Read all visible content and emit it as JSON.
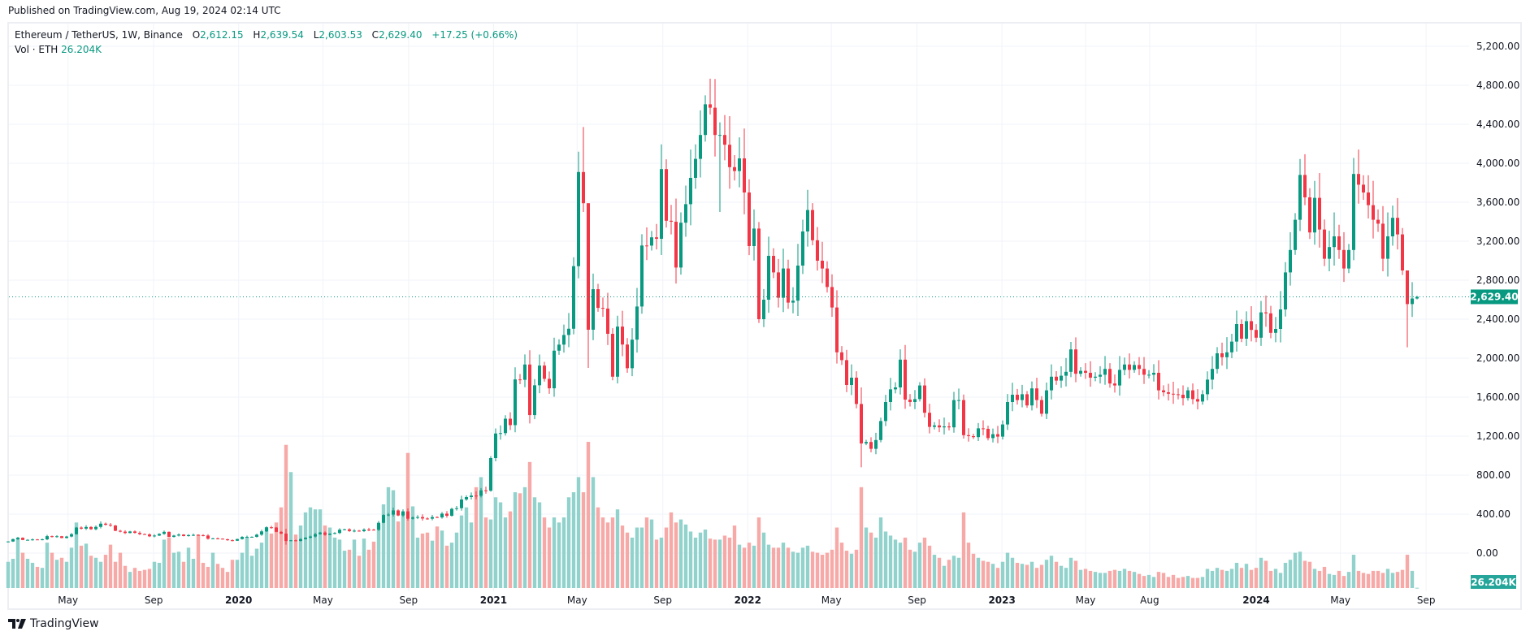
{
  "header": {
    "published": "Published on TradingView.com, Aug 19, 2024 02:14 UTC"
  },
  "legend": {
    "symbol": "Ethereum / TetherUS, 1W, Binance",
    "open_label": "O",
    "open": "2,612.15",
    "high_label": "H",
    "high": "2,639.54",
    "low_label": "L",
    "low": "2,603.53",
    "close_label": "C",
    "close": "2,629.40",
    "change": "+17.25 (+0.66%)",
    "vol_label": "Vol · ETH",
    "vol_value": "26.204K"
  },
  "footer": {
    "brand": "TradingView"
  },
  "colors": {
    "up": "#089981",
    "down": "#f23645",
    "vol_up": "#92d2cc",
    "vol_down": "#f7a9a7",
    "grid": "#f0f3fa",
    "badge": "#089981",
    "vol_badge": "#26a69a"
  },
  "chart_data": {
    "type": "candlestick",
    "interval": "1W",
    "start_week": "2019-02-04",
    "first_open": 115,
    "ylim": [
      0,
      5400
    ],
    "y_ticks": [
      "0.00",
      "400.00",
      "800.00",
      "1,200.00",
      "1,600.00",
      "2,000.00",
      "2,400.00",
      "2,800.00",
      "3,200.00",
      "3,600.00",
      "4,000.00",
      "4,400.00",
      "4,800.00",
      "5,200.00"
    ],
    "y_tick_values": [
      0,
      400,
      800,
      1200,
      1600,
      2000,
      2400,
      2800,
      3200,
      3600,
      4000,
      4400,
      4800,
      5200
    ],
    "x_ticks": [
      {
        "label": "May",
        "date": "2019-05-01",
        "bold": false
      },
      {
        "label": "Sep",
        "date": "2019-09-01",
        "bold": false
      },
      {
        "label": "2020",
        "date": "2020-01-01",
        "bold": true
      },
      {
        "label": "May",
        "date": "2020-05-01",
        "bold": false
      },
      {
        "label": "Sep",
        "date": "2020-09-01",
        "bold": false
      },
      {
        "label": "2021",
        "date": "2021-01-01",
        "bold": true
      },
      {
        "label": "May",
        "date": "2021-05-01",
        "bold": false
      },
      {
        "label": "Sep",
        "date": "2021-09-01",
        "bold": false
      },
      {
        "label": "2022",
        "date": "2022-01-01",
        "bold": true
      },
      {
        "label": "May",
        "date": "2022-05-01",
        "bold": false
      },
      {
        "label": "Sep",
        "date": "2022-09-01",
        "bold": false
      },
      {
        "label": "2023",
        "date": "2023-01-01",
        "bold": true
      },
      {
        "label": "May",
        "date": "2023-05-01",
        "bold": false
      },
      {
        "label": "Aug",
        "date": "2023-08-01",
        "bold": false
      },
      {
        "label": "2024",
        "date": "2024-01-01",
        "bold": true
      },
      {
        "label": "May",
        "date": "2024-05-01",
        "bold": false
      },
      {
        "label": "Sep",
        "date": "2024-09-01",
        "bold": false
      }
    ],
    "last_price": 2629.4,
    "last_price_label": "2,629.40",
    "last_volume_label": "26.204K",
    "close": [
      119,
      143,
      157,
      135,
      136,
      140,
      137,
      141,
      174,
      165,
      173,
      155,
      170,
      194,
      262,
      251,
      268,
      245,
      269,
      302,
      291,
      283,
      229,
      220,
      206,
      222,
      208,
      195,
      192,
      172,
      180,
      197,
      218,
      166,
      180,
      190,
      175,
      185,
      187,
      184,
      180,
      147,
      151,
      148,
      142,
      132,
      127,
      144,
      166,
      167,
      167,
      189,
      223,
      265,
      262,
      218,
      200,
      124,
      131,
      125,
      143,
      158,
      170,
      194,
      211,
      187,
      199,
      206,
      240,
      244,
      226,
      230,
      225,
      241,
      240,
      239,
      311,
      391,
      395,
      438,
      386,
      428,
      353,
      365,
      370,
      355,
      353,
      370,
      366,
      405,
      383,
      454,
      461,
      550,
      575,
      590,
      588,
      644,
      640,
      975,
      1227,
      1231,
      1379,
      1313,
      1782,
      1778,
      1935,
      1416,
      1722,
      1924,
      1788,
      1691,
      2077,
      2139,
      2238,
      2302,
      2944,
      3910,
      3590,
      2292,
      2708,
      2516,
      2509,
      2250,
      1810,
      2324,
      2140,
      1897,
      2190,
      2530,
      3156,
      3155,
      3240,
      3225,
      3940,
      3410,
      3400,
      2930,
      3390,
      3580,
      3850,
      4045,
      4290,
      4605,
      4570,
      4290,
      4290,
      4190,
      3960,
      3920,
      4050,
      3700,
      3150,
      3330,
      2400,
      2600,
      3050,
      2880,
      2620,
      2920,
      2570,
      2590,
      2950,
      3300,
      3520,
      3210,
      3000,
      2920,
      2730,
      2520,
      2060,
      1980,
      1725,
      1800,
      1530,
      1125,
      1140,
      1070,
      1160,
      1355,
      1550,
      1680,
      1700,
      1985,
      1575,
      1550,
      1580,
      1720,
      1440,
      1295,
      1310,
      1290,
      1300,
      1290,
      1570,
      1570,
      1210,
      1200,
      1190,
      1280,
      1275,
      1180,
      1220,
      1195,
      1320,
      1550,
      1625,
      1570,
      1630,
      1515,
      1690,
      1570,
      1430,
      1670,
      1810,
      1770,
      1820,
      1860,
      2090,
      1840,
      1870,
      1850,
      1800,
      1810,
      1830,
      1890,
      1740,
      1720,
      1880,
      1935,
      1880,
      1930,
      1890,
      1830,
      1830,
      1850,
      1670,
      1650,
      1635,
      1630,
      1625,
      1590,
      1670,
      1580,
      1555,
      1630,
      1780,
      1890,
      2050,
      2010,
      2060,
      2170,
      2350,
      2200,
      2380,
      2290,
      2210,
      2470,
      2460,
      2260,
      2300,
      2500,
      2880,
      3110,
      3420,
      3880,
      3650,
      3290,
      3645,
      3320,
      3020,
      3140,
      3250,
      3110,
      2920,
      3110,
      3890,
      3780,
      3700,
      3570,
      3420,
      3380,
      3020,
      3250,
      3440,
      3270,
      2900,
      2555,
      2612.15,
      2629.4
    ],
    "volume_k": [
      2600,
      2900,
      5000,
      3500,
      2900,
      2500,
      2100,
      2000,
      4500,
      3500,
      2800,
      3000,
      2600,
      4000,
      6500,
      4200,
      4400,
      3200,
      3000,
      2600,
      3300,
      4300,
      2600,
      3500,
      2200,
      1600,
      2000,
      1700,
      1800,
      1900,
      2600,
      2500,
      4800,
      5000,
      3500,
      3600,
      2600,
      4000,
      2900,
      5300,
      2500,
      2100,
      3500,
      2400,
      2000,
      1600,
      2800,
      2800,
      3500,
      5000,
      3200,
      3900,
      4500,
      6000,
      5400,
      6500,
      8000,
      14200,
      11500,
      5300,
      6200,
      7500,
      8000,
      7800,
      7800,
      6200,
      6000,
      5000,
      4800,
      3700,
      3800,
      4800,
      3200,
      4900,
      3800,
      4600,
      6300,
      8300,
      10000,
      9700,
      6600,
      7600,
      13400,
      8100,
      5000,
      5400,
      5500,
      4700,
      6100,
      5700,
      4200,
      4500,
      5500,
      7200,
      8000,
      6500,
      10000,
      11000,
      7000,
      6800,
      9000,
      8500,
      7000,
      7600,
      9500,
      9400,
      10000,
      12500,
      9000,
      8500,
      7000,
      6000,
      7000,
      6500,
      7000,
      9000,
      9500,
      11000,
      9500,
      14500,
      11000,
      8000,
      7000,
      6500,
      7000,
      7800,
      6200,
      5500,
      5000,
      6000,
      6000,
      7000,
      6800,
      4800,
      5000,
      6000,
      7500,
      6500,
      6800,
      6300,
      5600,
      5000,
      5500,
      5800,
      4900,
      4800,
      4800,
      5200,
      5000,
      6200,
      4300,
      4000,
      4500,
      4200,
      7000,
      5500,
      4300,
      4000,
      4000,
      4500,
      4000,
      3600,
      3500,
      4000,
      4200,
      3600,
      3500,
      3300,
      3500,
      3800,
      6000,
      4500,
      3700,
      3400,
      3800,
      10000,
      6000,
      5500,
      5000,
      7000,
      5600,
      5200,
      4800,
      4500,
      5000,
      3800,
      3600,
      4500,
      5000,
      4200,
      3300,
      3000,
      2200,
      2800,
      3200,
      3000,
      7500,
      4500,
      3400,
      3000,
      2700,
      2600,
      2400,
      2000,
      2600,
      3500,
      3000,
      2500,
      2400,
      2300,
      2600,
      2000,
      2300,
      2800,
      3200,
      2600,
      2200,
      2000,
      3000,
      2700,
      1800,
      1900,
      1700,
      1600,
      1500,
      1500,
      1700,
      1800,
      1700,
      1900,
      1700,
      1600,
      1400,
      1200,
      1300,
      1100,
      1600,
      1500,
      1100,
      1300,
      1000,
      1100,
      1200,
      1000,
      1000,
      1100,
      1900,
      1700,
      2000,
      1800,
      1700,
      1900,
      2500,
      2000,
      2400,
      1800,
      2000,
      3000,
      2700,
      1700,
      1900,
      1500,
      2500,
      2800,
      3500,
      3600,
      2700,
      2600,
      1900,
      1700,
      2100,
      1400,
      1300,
      1700,
      1200,
      1600,
      3300,
      1700,
      1500,
      1400,
      1700,
      1700,
      1500,
      1900,
      1500,
      1600,
      1800,
      3300,
      1700,
      26.204
    ],
    "wick_overrides": {
      "57": [
        250,
        86
      ],
      "118": [
        4372,
        3500
      ],
      "119": [
        3590,
        1900
      ],
      "144": [
        4868,
        4500
      ],
      "146": [
        4420,
        3500
      ],
      "175": [
        1700,
        880
      ],
      "266": [
        4093,
        3570
      ],
      "287": [
        2810,
        2111
      ],
      "289": [
        2639.54,
        2603.53
      ]
    }
  }
}
